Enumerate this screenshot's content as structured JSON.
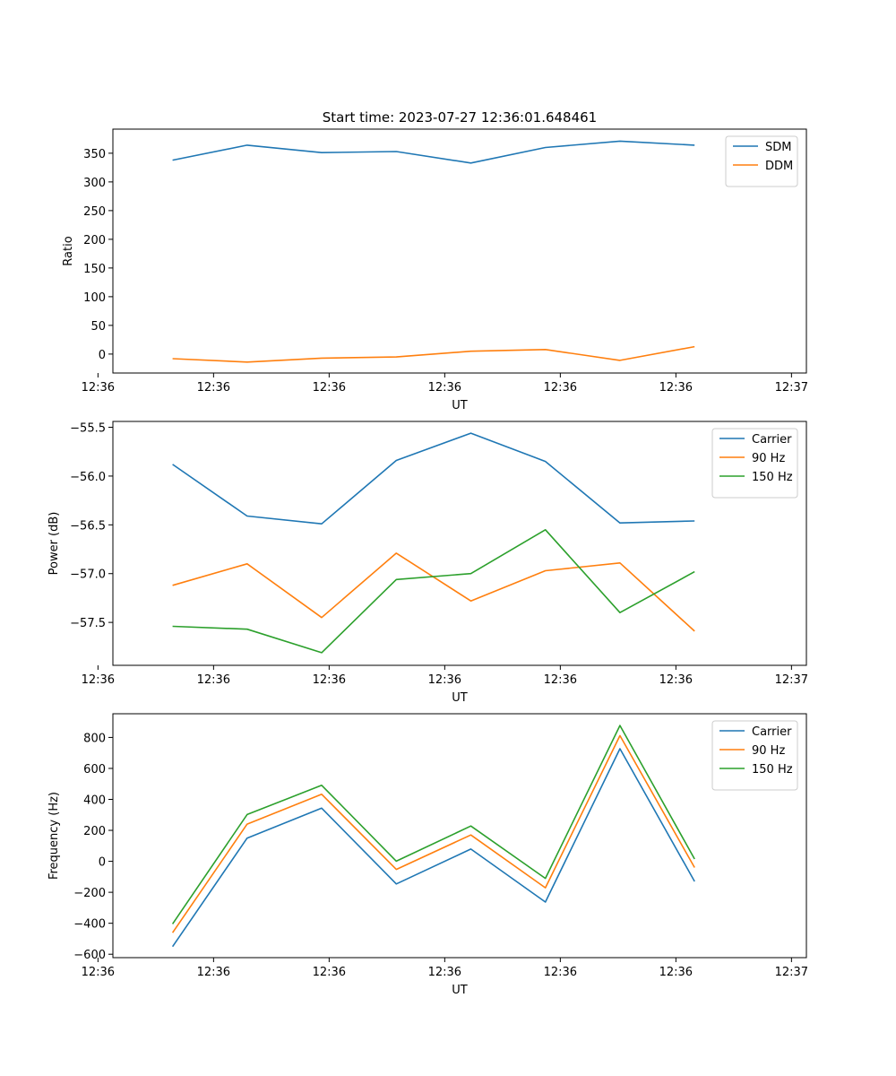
{
  "figure": {
    "title": "Start time: 2023-07-27 12:36:01.648461"
  },
  "colors": {
    "series1": "#1f77b4",
    "series2": "#ff7f0e",
    "series3": "#2ca02c",
    "axis": "#000000",
    "legend_border": "#cccccc"
  },
  "chart_data": [
    {
      "type": "line",
      "title": "Start time: 2023-07-27 12:36:01.648461",
      "xlabel": "UT",
      "ylabel": "Ratio",
      "x": [
        1,
        2,
        3,
        4,
        5,
        6,
        7,
        8
      ],
      "xlim": [
        0.2,
        9.5
      ],
      "x_ticks": [
        0,
        1.55,
        3.1,
        4.65,
        6.2,
        7.75,
        9.3
      ],
      "x_tick_labels": [
        "12:36",
        "12:36",
        "12:36",
        "12:36",
        "12:36",
        "12:36",
        "12:37"
      ],
      "ylim": [
        -33,
        392
      ],
      "y_ticks": [
        0,
        50,
        100,
        150,
        200,
        250,
        300,
        350
      ],
      "y_tick_labels": [
        "0",
        "50",
        "100",
        "150",
        "200",
        "250",
        "300",
        "350"
      ],
      "legend_position": "top-right",
      "series": [
        {
          "name": "SDM",
          "color_key": "series1",
          "values": [
            338,
            364,
            351,
            353,
            333,
            360,
            371,
            364
          ]
        },
        {
          "name": "DDM",
          "color_key": "series2",
          "values": [
            -8,
            -14,
            -7,
            -5,
            5,
            8,
            -11,
            13
          ]
        }
      ]
    },
    {
      "type": "line",
      "title": "",
      "xlabel": "UT",
      "ylabel": "Power (dB)",
      "x": [
        1,
        2,
        3,
        4,
        5,
        6,
        7,
        8
      ],
      "xlim": [
        0.2,
        9.5
      ],
      "x_ticks": [
        0,
        1.55,
        3.1,
        4.65,
        6.2,
        7.75,
        9.3
      ],
      "x_tick_labels": [
        "12:36",
        "12:36",
        "12:36",
        "12:36",
        "12:36",
        "12:36",
        "12:37"
      ],
      "ylim": [
        -57.94,
        -55.44
      ],
      "y_ticks": [
        -57.5,
        -57.0,
        -56.5,
        -56.0,
        -55.5
      ],
      "y_tick_labels": [
        "−57.5",
        "−57.0",
        "−56.5",
        "−56.0",
        "−55.5"
      ],
      "legend_position": "top-right",
      "series": [
        {
          "name": "Carrier",
          "color_key": "series1",
          "values": [
            -55.88,
            -56.41,
            -56.49,
            -55.84,
            -55.56,
            -55.85,
            -56.48,
            -56.46
          ]
        },
        {
          "name": "90 Hz",
          "color_key": "series2",
          "values": [
            -57.12,
            -56.9,
            -57.45,
            -56.79,
            -57.28,
            -56.97,
            -56.89,
            -57.59
          ]
        },
        {
          "name": "150 Hz",
          "color_key": "series3",
          "values": [
            -57.54,
            -57.57,
            -57.81,
            -57.06,
            -57.0,
            -56.55,
            -57.4,
            -56.98
          ]
        }
      ]
    },
    {
      "type": "line",
      "title": "",
      "xlabel": "UT",
      "ylabel": "Frequency (Hz)",
      "x": [
        1,
        2,
        3,
        4,
        5,
        6,
        7,
        8
      ],
      "xlim": [
        0.2,
        9.5
      ],
      "x_ticks": [
        0,
        1.55,
        3.1,
        4.65,
        6.2,
        7.75,
        9.3
      ],
      "x_tick_labels": [
        "12:36",
        "12:36",
        "12:36",
        "12:36",
        "12:36",
        "12:36",
        "12:37"
      ],
      "ylim": [
        -622,
        953
      ],
      "y_ticks": [
        -600,
        -400,
        -200,
        0,
        200,
        400,
        600,
        800
      ],
      "y_tick_labels": [
        "−600",
        "−400",
        "−200",
        "0",
        "200",
        "400",
        "600",
        "800"
      ],
      "legend_position": "top-right",
      "series": [
        {
          "name": "Carrier",
          "color_key": "series1",
          "values": [
            -551,
            150,
            343,
            -146,
            79,
            -263,
            727,
            -130
          ]
        },
        {
          "name": "90 Hz",
          "color_key": "series2",
          "values": [
            -461,
            240,
            433,
            -52,
            170,
            -171,
            812,
            -40
          ]
        },
        {
          "name": "150 Hz",
          "color_key": "series3",
          "values": [
            -404,
            302,
            491,
            1,
            228,
            -110,
            877,
            15
          ]
        }
      ]
    }
  ]
}
